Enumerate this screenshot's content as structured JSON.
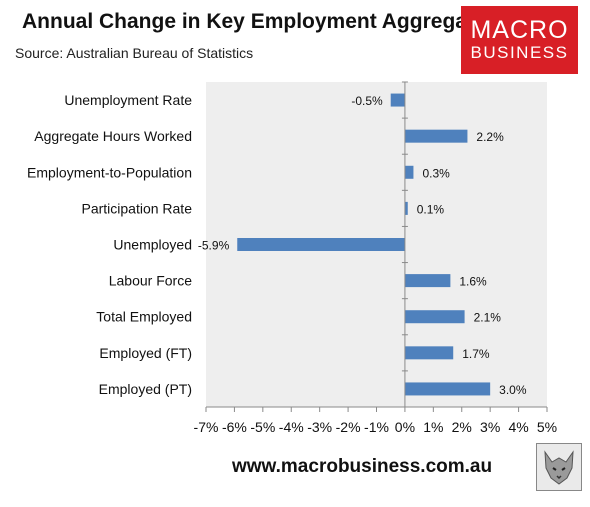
{
  "title": "Annual Change in Key Employment Aggregates",
  "subtitle": "Source: Australian Bureau of Statistics",
  "logo": {
    "line1": "MACRO",
    "line2": "BUSINESS"
  },
  "footer": "www.macrobusiness.com.au",
  "colors": {
    "bar": "#4f81bd",
    "plot_bg": "#eeeeee",
    "logo_bg": "#d81f26"
  },
  "chart_data": {
    "type": "bar",
    "orientation": "horizontal",
    "categories": [
      "Unemployment Rate",
      "Aggregate Hours Worked",
      "Employment-to-Population",
      "Participation Rate",
      "Unemployed",
      "Labour Force",
      "Total Employed",
      "Employed (FT)",
      "Employed (PT)"
    ],
    "values": [
      -0.5,
      2.2,
      0.3,
      0.1,
      -5.9,
      1.6,
      2.1,
      1.7,
      3.0
    ],
    "value_labels": [
      "-0.5%",
      "2.2%",
      "0.3%",
      "0.1%",
      "-5.9%",
      "1.6%",
      "2.1%",
      "1.7%",
      "3.0%"
    ],
    "xlim": [
      -7,
      5
    ],
    "xticks": [
      -7,
      -6,
      -5,
      -4,
      -3,
      -2,
      -1,
      0,
      1,
      2,
      3,
      4,
      5
    ],
    "xtick_labels": [
      "-7%",
      "-6%",
      "-5%",
      "-4%",
      "-3%",
      "-2%",
      "-1%",
      "0%",
      "1%",
      "2%",
      "3%",
      "4%",
      "5%"
    ],
    "grid": false,
    "legend": "none"
  }
}
